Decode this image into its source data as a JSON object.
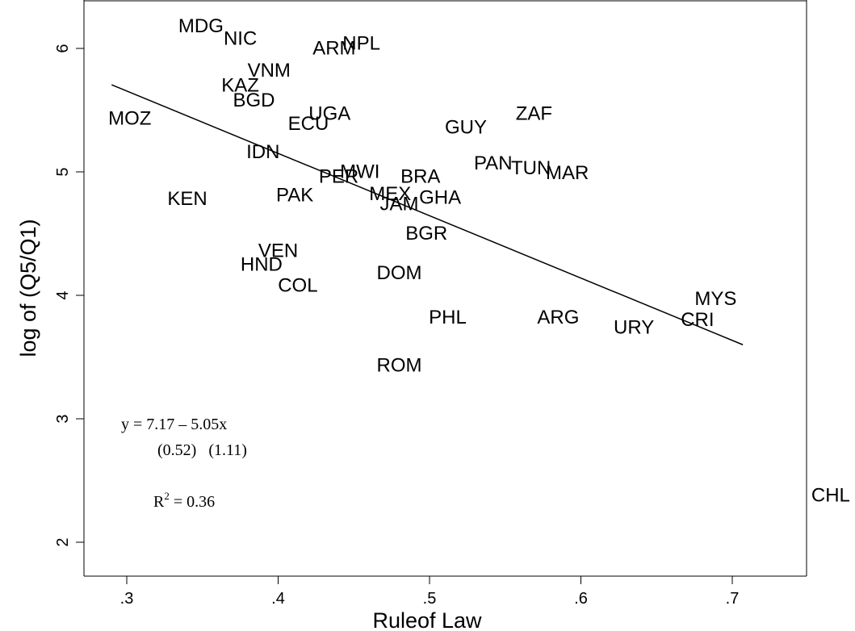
{
  "chart_data": {
    "type": "scatter",
    "title": "",
    "xlabel": "Ruleof Law",
    "ylabel": "log of (Q5/Q1)",
    "xlim": [
      0.27,
      0.75
    ],
    "ylim": [
      1.75,
      6.35
    ],
    "x_ticks": [
      ".3",
      ".4",
      ".5",
      ".6",
      ".7"
    ],
    "x_tick_values": [
      0.3,
      0.4,
      0.5,
      0.6,
      0.7
    ],
    "y_ticks": [
      "2",
      "3",
      "4",
      "5",
      "6"
    ],
    "y_tick_values": [
      2,
      3,
      4,
      5,
      6
    ],
    "grid": false,
    "points": [
      {
        "label": "MDG",
        "x": 0.349,
        "y": 6.18
      },
      {
        "label": "NIC",
        "x": 0.375,
        "y": 6.08
      },
      {
        "label": "ARM",
        "x": 0.437,
        "y": 6.0
      },
      {
        "label": "NPL",
        "x": 0.455,
        "y": 6.04
      },
      {
        "label": "VNM",
        "x": 0.394,
        "y": 5.82
      },
      {
        "label": "KAZ",
        "x": 0.375,
        "y": 5.7
      },
      {
        "label": "BGD",
        "x": 0.384,
        "y": 5.58
      },
      {
        "label": "MOZ",
        "x": 0.302,
        "y": 5.43
      },
      {
        "label": "UGA",
        "x": 0.434,
        "y": 5.47
      },
      {
        "label": "ECU",
        "x": 0.42,
        "y": 5.39
      },
      {
        "label": "ZAF",
        "x": 0.569,
        "y": 5.47
      },
      {
        "label": "GUY",
        "x": 0.524,
        "y": 5.36
      },
      {
        "label": "IDN",
        "x": 0.39,
        "y": 5.16
      },
      {
        "label": "PAN",
        "x": 0.542,
        "y": 5.07
      },
      {
        "label": "TUN",
        "x": 0.567,
        "y": 5.03
      },
      {
        "label": "MAR",
        "x": 0.591,
        "y": 4.99
      },
      {
        "label": "PER",
        "x": 0.44,
        "y": 4.96
      },
      {
        "label": "MWI",
        "x": 0.454,
        "y": 5.0
      },
      {
        "label": "BRA",
        "x": 0.494,
        "y": 4.96
      },
      {
        "label": "KEN",
        "x": 0.34,
        "y": 4.78
      },
      {
        "label": "PAK",
        "x": 0.411,
        "y": 4.81
      },
      {
        "label": "MEX",
        "x": 0.474,
        "y": 4.82
      },
      {
        "label": "GHA",
        "x": 0.507,
        "y": 4.79
      },
      {
        "label": "JAM",
        "x": 0.48,
        "y": 4.74
      },
      {
        "label": "BGR",
        "x": 0.498,
        "y": 4.5
      },
      {
        "label": "VEN",
        "x": 0.4,
        "y": 4.36
      },
      {
        "label": "HND",
        "x": 0.389,
        "y": 4.25
      },
      {
        "label": "DOM",
        "x": 0.48,
        "y": 4.18
      },
      {
        "label": "COL",
        "x": 0.413,
        "y": 4.08
      },
      {
        "label": "MYS",
        "x": 0.689,
        "y": 3.97
      },
      {
        "label": "CRI",
        "x": 0.677,
        "y": 3.8
      },
      {
        "label": "PHL",
        "x": 0.512,
        "y": 3.82
      },
      {
        "label": "ARG",
        "x": 0.585,
        "y": 3.82
      },
      {
        "label": "URY",
        "x": 0.635,
        "y": 3.74
      },
      {
        "label": "ROM",
        "x": 0.48,
        "y": 3.43
      },
      {
        "label": "CHL",
        "x": 0.765,
        "y": 2.38
      }
    ],
    "fit_line": {
      "intercept": 7.17,
      "slope": -5.05,
      "x_start": 0.29,
      "x_end": 0.707
    },
    "annotations": {
      "equation": "y = 7.17 – 5.05x",
      "std_errors": "(0.52)   (1.11)",
      "r2_prefix": "R",
      "r2_sup": "2",
      "r2_value": " = 0.36"
    }
  }
}
